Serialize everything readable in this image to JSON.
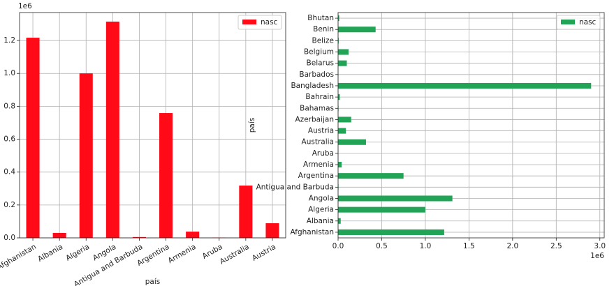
{
  "chart_data": [
    {
      "type": "bar",
      "offset_text": "1e6",
      "xlabel": "país",
      "categories": [
        "Afghanistan",
        "Albania",
        "Algeria",
        "Angola",
        "Antigua and Barbuda",
        "Argentina",
        "Armenia",
        "Aruba",
        "Australia",
        "Austria"
      ],
      "series": [
        {
          "name": "nasc",
          "color": "#ff0a16",
          "values": [
            1217000,
            30000,
            1000000,
            1315000,
            5000,
            759000,
            38000,
            2000,
            318000,
            89000
          ]
        }
      ],
      "ylim": [
        0,
        1370000
      ],
      "yticks": [
        {
          "value": 0,
          "label": "0.0"
        },
        {
          "value": 200000,
          "label": "0.2"
        },
        {
          "value": 400000,
          "label": "0.4"
        },
        {
          "value": 600000,
          "label": "0.6"
        },
        {
          "value": 800000,
          "label": "0.8"
        },
        {
          "value": 1000000,
          "label": "1.0"
        },
        {
          "value": 1200000,
          "label": "1.2"
        }
      ],
      "grid": true,
      "legend": "upper right"
    },
    {
      "type": "barh",
      "offset_text": "1e6",
      "ylabel": "país",
      "categories": [
        "Afghanistan",
        "Albania",
        "Algeria",
        "Angola",
        "Antigua and Barbuda",
        "Argentina",
        "Armenia",
        "Aruba",
        "Australia",
        "Austria",
        "Azerbaijan",
        "Bahamas",
        "Bahrain",
        "Bangladesh",
        "Barbados",
        "Belarus",
        "Belgium",
        "Belize",
        "Benin",
        "Bhutan"
      ],
      "series": [
        {
          "name": "nasc",
          "color": "#22a456",
          "values": [
            1216000,
            30000,
            1000000,
            1310000,
            5000,
            750000,
            40000,
            2000,
            320000,
            89000,
            150000,
            5000,
            20000,
            2900000,
            3000,
            100000,
            120000,
            7000,
            430000,
            13000
          ]
        }
      ],
      "xlim": [
        0,
        3050000
      ],
      "xticks": [
        {
          "value": 0,
          "label": "0.0"
        },
        {
          "value": 500000,
          "label": "0.5"
        },
        {
          "value": 1000000,
          "label": "1.0"
        },
        {
          "value": 1500000,
          "label": "1.5"
        },
        {
          "value": 2000000,
          "label": "2.0"
        },
        {
          "value": 2500000,
          "label": "2.5"
        },
        {
          "value": 3000000,
          "label": "3.0"
        }
      ],
      "grid": true,
      "legend": "upper right"
    }
  ]
}
